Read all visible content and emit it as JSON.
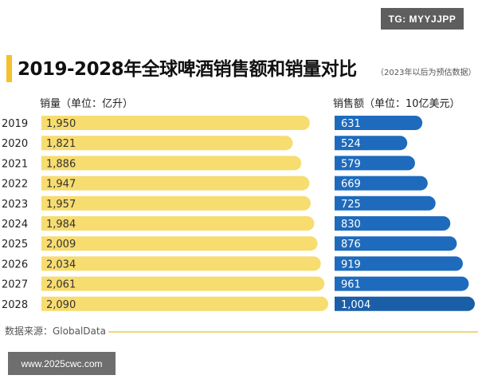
{
  "watermarks": {
    "top": "TG: MYYJJPP",
    "bottom": "www.2025cwc.com"
  },
  "header": {
    "title": "2019-2028年全球啤酒销售额和销量对比",
    "subtitle": "（2023年以后为预估数据）"
  },
  "legend": {
    "left": "销量（单位：亿升）",
    "right": "销售额（单位：10亿美元）"
  },
  "footer": {
    "source": "数据来源：GlobalData"
  },
  "colors": {
    "volume_bar": "#f7dc6f",
    "sales_bar": "#1e6bbd",
    "sales_bar_last": "#1a5ea8",
    "title_accent": "#f2c12e"
  },
  "chart_data": [
    {
      "type": "bar",
      "orientation": "horizontal",
      "series_label": "销量（单位：亿升）",
      "categories": [
        "2019",
        "2020",
        "2021",
        "2022",
        "2023",
        "2024",
        "2025",
        "2026",
        "2027",
        "2028"
      ],
      "values": [
        1950,
        1821,
        1886,
        1947,
        1957,
        1984,
        2009,
        2034,
        2061,
        2090
      ],
      "value_labels": [
        "1,950",
        "1,821",
        "1,886",
        "1,947",
        "1,957",
        "1,984",
        "2,009",
        "2,034",
        "2,061",
        "2,090"
      ]
    },
    {
      "type": "bar",
      "orientation": "horizontal",
      "series_label": "销售额（单位：10亿美元）",
      "categories": [
        "2019",
        "2020",
        "2021",
        "2022",
        "2023",
        "2024",
        "2025",
        "2026",
        "2027",
        "2028"
      ],
      "values": [
        631,
        524,
        579,
        669,
        725,
        830,
        876,
        919,
        961,
        1004
      ],
      "value_labels": [
        "631",
        "524",
        "579",
        "669",
        "725",
        "830",
        "876",
        "919",
        "961",
        "1,004"
      ]
    }
  ]
}
